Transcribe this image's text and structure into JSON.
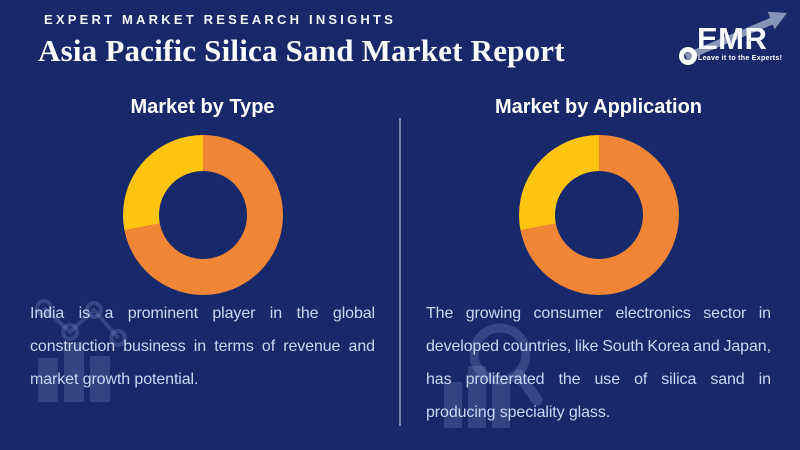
{
  "page": {
    "background_color": "#18296B",
    "body_text_color": "#CAD6F2",
    "accent_orange": "#EF8535",
    "accent_yellow": "#FEC40F",
    "divider_color": "#B0BEDB"
  },
  "header": {
    "kicker": "EXPERT MARKET RESEARCH INSIGHTS",
    "title": "Asia Pacific Silica Sand Market Report"
  },
  "logo": {
    "wordmark": "EMR",
    "tagline": "Leave it to the Experts!"
  },
  "panels": [
    {
      "heading": "Market by Type",
      "description": "India is a prominent player in the global construction business in terms of revenue and market growth potential.",
      "lines": [
        "India is a prominent player in the global",
        "construction business in terms of revenue and",
        "market growth potential."
      ]
    },
    {
      "heading": "Market by Application",
      "description": "The growing consumer electronics sector in developed countries, like South Korea and Japan, has proliferated the use of silica sand in producing speciality glass.",
      "lines": [
        "The growing consumer electronics sector in",
        "developed countries, like South Korea and Japan,",
        "has proliferated the use of silica sand in",
        "producing speciality glass."
      ]
    }
  ],
  "chart_data": [
    {
      "type": "pie",
      "subtype": "donut",
      "title": "Market by Type",
      "labels_shown": false,
      "start": "12-oclock",
      "direction": "clockwise",
      "series": [
        {
          "name": "unlabeled-orange-segment",
          "value_pct": 72,
          "color": "#EF8535"
        },
        {
          "name": "unlabeled-yellow-segment",
          "value_pct": 28,
          "color": "#FEC40F"
        }
      ]
    },
    {
      "type": "pie",
      "subtype": "donut",
      "title": "Market by Application",
      "labels_shown": false,
      "start": "12-oclock",
      "direction": "clockwise",
      "series": [
        {
          "name": "unlabeled-orange-segment",
          "value_pct": 72,
          "color": "#EF8535"
        },
        {
          "name": "unlabeled-yellow-segment",
          "value_pct": 28,
          "color": "#FEC40F"
        }
      ]
    }
  ]
}
